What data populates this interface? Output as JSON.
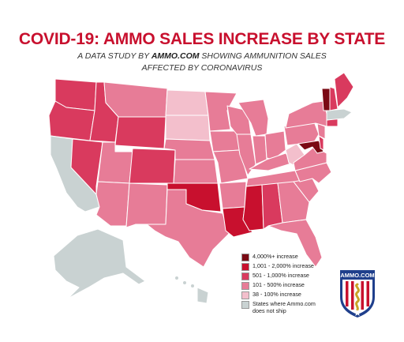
{
  "header": {
    "title": "COVID-19: AMMO SALES INCREASE BY STATE",
    "subtitle_pre": "A DATA STUDY BY ",
    "subtitle_brand": "AMMO.COM",
    "subtitle_post": " SHOWING AMMUNITION SALES",
    "subtitle_line2": "AFFECTED BY CORONAVIRUS"
  },
  "legend": {
    "items": [
      {
        "label": "4,000%+ increase",
        "color": "#7a0a14"
      },
      {
        "label": "1,001 - 2,000% increase",
        "color": "#c8102e"
      },
      {
        "label": "501 - 1,000% increase",
        "color": "#d93a5e"
      },
      {
        "label": "101 - 500% increase",
        "color": "#e77c97"
      },
      {
        "label": "38 - 100% increase",
        "color": "#f3bfcc"
      },
      {
        "label_line1": "States where Ammo.com",
        "label_line2": "does not ship",
        "color": "#c9d2d2"
      }
    ]
  },
  "badge": {
    "text": "AMMO.COM",
    "colors": {
      "blue": "#1f3f8c",
      "red": "#c8102e"
    }
  },
  "map_colors": {
    "tier1": "#7a0a14",
    "tier2": "#c8102e",
    "tier3": "#d93a5e",
    "tier4": "#e77c97",
    "tier5": "#f3bfcc",
    "noship": "#c9d2d2",
    "border": "#ffffff"
  }
}
